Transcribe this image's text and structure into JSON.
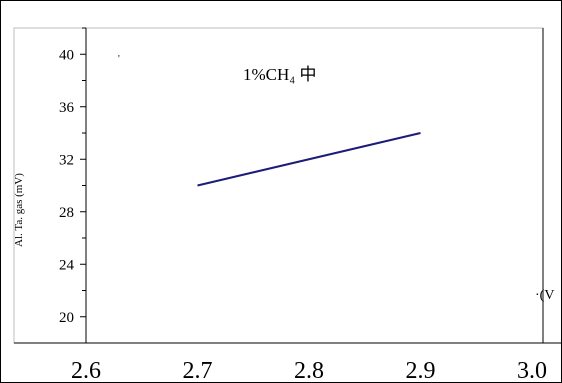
{
  "chart_data": {
    "type": "line",
    "title": "",
    "annotation": "1%CH₄ 中",
    "xlabel": "",
    "ylabel": "",
    "xlim": [
      2.6,
      3.0
    ],
    "ylim": [
      18,
      42
    ],
    "x_ticks": [
      "2.6",
      "2.7",
      "2.8",
      "2.9",
      "3.0"
    ],
    "y_ticks": [
      "20",
      "24",
      "28",
      "32",
      "36",
      "40"
    ],
    "series": [
      {
        "x": [
          2.7,
          2.9
        ],
        "y": [
          30,
          34
        ],
        "color": "#1c1c7a"
      }
    ],
    "grid": false,
    "legend": "none"
  }
}
